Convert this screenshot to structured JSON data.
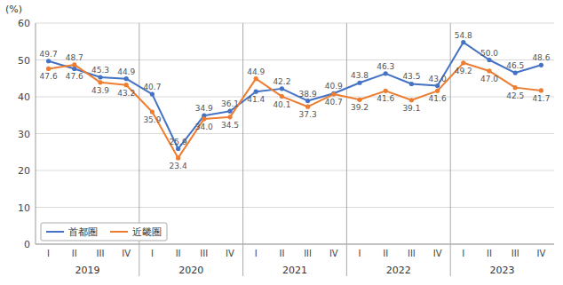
{
  "chart_data": {
    "type": "line",
    "ylabel": "(%)",
    "categories": [
      "I",
      "II",
      "III",
      "IV",
      "I",
      "II",
      "III",
      "IV",
      "I",
      "II",
      "III",
      "IV",
      "I",
      "II",
      "III",
      "IV",
      "I",
      "II",
      "III",
      "IV"
    ],
    "annotations": [
      "2019",
      "2020",
      "2021",
      "2022",
      "2023"
    ],
    "series": [
      {
        "name": "首都圏",
        "color": "#4472C4",
        "marker": "circle",
        "values": [
          49.7,
          47.6,
          45.3,
          44.9,
          40.7,
          25.9,
          34.9,
          36.1,
          41.4,
          42.2,
          38.9,
          40.9,
          43.8,
          46.3,
          43.5,
          43.0,
          54.8,
          50.0,
          46.5,
          48.6
        ],
        "value_labels": [
          "49.7",
          "47.6",
          "45.3",
          "44.9",
          "40.7",
          "25.9",
          "34.9",
          "36.1",
          "41.4",
          "42.2",
          "38.9",
          "40.9",
          "43.8",
          "46.3",
          "43.5",
          "43.0",
          "54.8",
          "50.0",
          "46.5",
          "48.6"
        ]
      },
      {
        "name": "近畿圏",
        "color": "#ED7D31",
        "marker": "circle",
        "values": [
          47.6,
          48.7,
          43.9,
          43.2,
          35.9,
          23.4,
          34.0,
          34.5,
          44.9,
          40.1,
          37.3,
          40.7,
          39.2,
          41.6,
          39.1,
          41.6,
          49.2,
          47.0,
          42.5,
          41.7
        ],
        "value_labels": [
          "47.6",
          "48.7",
          "43.9",
          "43.2",
          "35.9",
          "23.4",
          "34.0",
          "34.5",
          "44.9",
          "40.1",
          "37.3",
          "40.7",
          "39.2",
          "41.6",
          "39.1",
          "41.6",
          "49.2",
          "47.0",
          "42.5",
          "41.7"
        ]
      }
    ],
    "ylim": [
      0,
      60
    ],
    "yticks": [
      0,
      10,
      20,
      30,
      40,
      50,
      60
    ],
    "grid": true,
    "legend": "lower left",
    "data_labels": true
  }
}
